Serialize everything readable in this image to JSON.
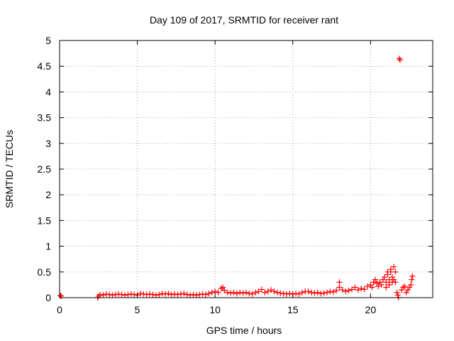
{
  "chart_data": {
    "type": "scatter",
    "title": "Day 109 of 2017, SRMTID for receiver rant",
    "xlabel": "GPS time / hours",
    "ylabel": "SRMTID / TECUs",
    "xlim": [
      0,
      24
    ],
    "ylim": [
      0,
      5
    ],
    "xticks": [
      0,
      5,
      10,
      15,
      20
    ],
    "yticks": [
      0,
      0.5,
      1,
      1.5,
      2,
      2.5,
      3,
      3.5,
      4,
      4.5,
      5
    ],
    "xtick_labels": [
      "0",
      "5",
      "10",
      "15",
      "20"
    ],
    "ytick_labels": [
      "0",
      "0.5",
      "1",
      "1.5",
      "2",
      "2.5",
      "3",
      "3.5",
      "4",
      "4.5",
      "5"
    ],
    "grid": true,
    "marker": "plus",
    "color": "#ff0000",
    "series": [
      {
        "x": [
          0.05,
          0.1,
          2.45,
          2.5,
          2.6,
          2.8,
          3.0,
          3.2,
          3.4,
          3.6,
          3.8,
          4.0,
          4.2,
          4.4,
          4.6,
          4.8,
          5.0,
          5.2,
          5.4,
          5.6,
          5.8,
          6.0,
          6.2,
          6.4,
          6.6,
          6.8,
          7.0,
          7.2,
          7.4,
          7.6,
          7.8,
          8.0,
          8.2,
          8.4,
          8.6,
          8.8,
          9.0,
          9.2,
          9.4,
          9.6,
          9.8,
          10.0,
          10.2,
          10.4,
          10.5,
          10.6,
          10.8,
          11.0,
          11.2,
          11.4,
          11.6,
          11.8,
          12.0,
          12.2,
          12.4,
          12.6,
          12.8,
          13.0,
          13.2,
          13.4,
          13.6,
          13.8,
          14.0,
          14.2,
          14.4,
          14.6,
          14.8,
          15.0,
          15.2,
          15.4,
          15.6,
          15.8,
          16.0,
          16.2,
          16.4,
          16.6,
          16.8,
          17.0,
          17.2,
          17.4,
          17.6,
          17.8,
          18.0,
          18.0,
          18.2,
          18.4,
          18.6,
          18.8,
          19.0,
          19.2,
          19.4,
          19.6,
          19.8,
          20.0,
          20.1,
          20.2,
          20.3,
          20.4,
          20.5,
          20.6,
          20.7,
          20.8,
          20.9,
          21.0,
          21.0,
          21.1,
          21.1,
          21.2,
          21.2,
          21.3,
          21.3,
          21.4,
          21.4,
          21.5,
          21.5,
          21.6,
          21.6,
          21.7,
          21.75,
          21.8,
          21.85,
          21.9,
          22.0,
          22.1,
          22.2,
          22.3,
          22.4,
          22.5,
          22.6,
          22.65,
          22.7
        ],
        "y": [
          0.04,
          0.03,
          0.0,
          0.03,
          0.06,
          0.05,
          0.07,
          0.06,
          0.05,
          0.06,
          0.07,
          0.06,
          0.05,
          0.06,
          0.07,
          0.06,
          0.05,
          0.08,
          0.07,
          0.06,
          0.07,
          0.06,
          0.05,
          0.06,
          0.08,
          0.07,
          0.08,
          0.06,
          0.07,
          0.06,
          0.07,
          0.08,
          0.06,
          0.05,
          0.06,
          0.05,
          0.06,
          0.07,
          0.06,
          0.08,
          0.1,
          0.12,
          0.1,
          0.18,
          0.2,
          0.14,
          0.1,
          0.09,
          0.1,
          0.08,
          0.1,
          0.09,
          0.1,
          0.08,
          0.07,
          0.1,
          0.12,
          0.16,
          0.1,
          0.12,
          0.15,
          0.12,
          0.1,
          0.09,
          0.08,
          0.07,
          0.08,
          0.07,
          0.08,
          0.07,
          0.1,
          0.12,
          0.12,
          0.1,
          0.09,
          0.1,
          0.08,
          0.09,
          0.1,
          0.12,
          0.11,
          0.14,
          0.3,
          0.2,
          0.15,
          0.12,
          0.14,
          0.16,
          0.2,
          0.15,
          0.18,
          0.16,
          0.22,
          0.25,
          0.2,
          0.3,
          0.35,
          0.28,
          0.22,
          0.3,
          0.25,
          0.35,
          0.4,
          0.3,
          0.2,
          0.45,
          0.5,
          0.35,
          0.25,
          0.5,
          0.55,
          0.4,
          0.3,
          0.6,
          0.35,
          0.5,
          0.3,
          0.1,
          0.05,
          0.0,
          4.65,
          4.62,
          0.15,
          0.2,
          0.22,
          0.1,
          0.15,
          0.2,
          0.25,
          0.35,
          0.42
        ]
      }
    ]
  }
}
